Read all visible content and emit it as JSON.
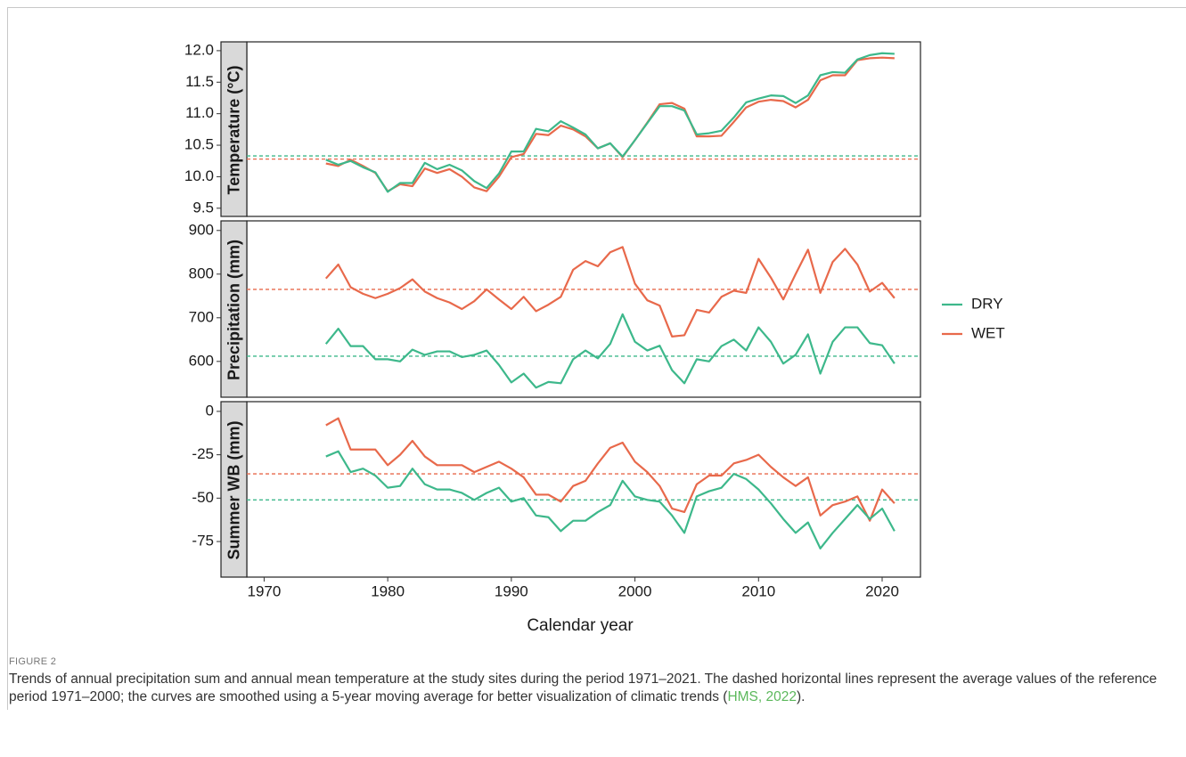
{
  "chart_data": [
    {
      "type": "line",
      "ylabel": "Temperature (°C)",
      "x": [
        1975,
        1976,
        1977,
        1978,
        1979,
        1980,
        1981,
        1982,
        1983,
        1984,
        1985,
        1986,
        1987,
        1988,
        1989,
        1990,
        1991,
        1992,
        1993,
        1994,
        1995,
        1996,
        1997,
        1998,
        1999,
        2000,
        2001,
        2002,
        2003,
        2004,
        2005,
        2006,
        2007,
        2008,
        2009,
        2010,
        2011,
        2012,
        2013,
        2014,
        2015,
        2016,
        2017,
        2018,
        2019,
        2020,
        2021
      ],
      "xlim": [
        1968.6,
        2023.1
      ],
      "ylim": [
        9.37,
        12.14
      ],
      "yticks": [
        9.5,
        {
          "value": 10,
          "label": "10.0"
        },
        10.5,
        {
          "value": 11,
          "label": "11.0"
        },
        11.5,
        {
          "value": 12,
          "label": "12.0"
        }
      ],
      "series": [
        {
          "name": "DRY",
          "color": "#3db88b",
          "reference": 10.33,
          "values": [
            10.27,
            10.19,
            10.25,
            10.15,
            10.07,
            9.76,
            9.9,
            9.9,
            10.22,
            10.12,
            10.19,
            10.1,
            9.93,
            9.82,
            10.05,
            10.4,
            10.4,
            10.76,
            10.72,
            10.88,
            10.78,
            10.67,
            10.45,
            10.53,
            10.32,
            10.58,
            10.85,
            11.12,
            11.12,
            11.05,
            10.67,
            10.69,
            10.73,
            10.94,
            11.18,
            11.24,
            11.29,
            11.28,
            11.17,
            11.29,
            11.61,
            11.66,
            11.65,
            11.86,
            11.93,
            11.96,
            11.95
          ]
        },
        {
          "name": "WET",
          "color": "#e8694b",
          "reference": 10.28,
          "values": [
            10.21,
            10.17,
            10.27,
            10.17,
            10.06,
            9.77,
            9.88,
            9.85,
            10.13,
            10.06,
            10.12,
            10.0,
            9.83,
            9.77,
            10.0,
            10.31,
            10.36,
            10.68,
            10.66,
            10.81,
            10.75,
            10.64,
            10.45,
            10.53,
            10.31,
            10.58,
            10.86,
            11.15,
            11.17,
            11.08,
            10.64,
            10.64,
            10.65,
            10.87,
            11.1,
            11.19,
            11.22,
            11.2,
            11.1,
            11.22,
            11.53,
            11.61,
            11.61,
            11.85,
            11.88,
            11.89,
            11.88
          ]
        }
      ]
    },
    {
      "type": "line",
      "ylabel": "Precipitation (mm)",
      "x": [
        1975,
        1976,
        1977,
        1978,
        1979,
        1980,
        1981,
        1982,
        1983,
        1984,
        1985,
        1986,
        1987,
        1988,
        1989,
        1990,
        1991,
        1992,
        1993,
        1994,
        1995,
        1996,
        1997,
        1998,
        1999,
        2000,
        2001,
        2002,
        2003,
        2004,
        2005,
        2006,
        2007,
        2008,
        2009,
        2010,
        2011,
        2012,
        2013,
        2014,
        2015,
        2016,
        2017,
        2018,
        2019,
        2020,
        2021
      ],
      "xlim": [
        1968.6,
        2023.1
      ],
      "ylim": [
        518,
        922
      ],
      "yticks": [
        600,
        700,
        800,
        900
      ],
      "series": [
        {
          "color": "#3db88b",
          "reference": 612,
          "values": [
            640,
            675,
            635,
            635,
            605,
            605,
            600,
            627,
            615,
            623,
            623,
            610,
            615,
            625,
            592,
            552,
            572,
            540,
            553,
            550,
            605,
            625,
            607,
            640,
            708,
            645,
            625,
            636,
            580,
            550,
            605,
            600,
            635,
            650,
            625,
            678,
            645,
            595,
            615,
            662,
            572,
            645,
            678,
            678,
            642,
            637,
            595
          ]
        },
        {
          "color": "#e8694b",
          "reference": 765,
          "values": [
            790,
            822,
            770,
            755,
            745,
            755,
            768,
            788,
            760,
            745,
            735,
            720,
            738,
            765,
            742,
            720,
            748,
            715,
            730,
            748,
            810,
            830,
            818,
            850,
            862,
            778,
            740,
            728,
            657,
            660,
            718,
            712,
            748,
            762,
            757,
            835,
            792,
            742,
            800,
            856,
            757,
            828,
            858,
            822,
            760,
            780,
            745
          ]
        }
      ]
    },
    {
      "type": "line",
      "ylabel": "Summer WB (mm)",
      "xlabel": "Calendar year",
      "x": [
        1975,
        1976,
        1977,
        1978,
        1979,
        1980,
        1981,
        1982,
        1983,
        1984,
        1985,
        1986,
        1987,
        1988,
        1989,
        1990,
        1991,
        1992,
        1993,
        1994,
        1995,
        1996,
        1997,
        1998,
        1999,
        2000,
        2001,
        2002,
        2003,
        2004,
        2005,
        2006,
        2007,
        2008,
        2009,
        2010,
        2011,
        2012,
        2013,
        2014,
        2015,
        2016,
        2017,
        2018,
        2019,
        2020,
        2021
      ],
      "xlim": [
        1968.6,
        2023.1
      ],
      "xticks": [
        1970,
        1980,
        1990,
        2000,
        2010,
        2020
      ],
      "ylim": [
        -95.5,
        5.6
      ],
      "yticks": [
        -75,
        -50,
        -25,
        0
      ],
      "series": [
        {
          "color": "#3db88b",
          "reference": -51,
          "values": [
            -26,
            -23,
            -35,
            -33,
            -37,
            -44,
            -43,
            -33,
            -42,
            -45,
            -45,
            -47,
            -51,
            -47,
            -44,
            -52,
            -50,
            -60,
            -61,
            -69,
            -63,
            -63,
            -58,
            -54,
            -40,
            -49,
            -51,
            -52,
            -60,
            -70,
            -49,
            -46,
            -44,
            -36,
            -39,
            -45,
            -53,
            -62,
            -70,
            -64,
            -79,
            -70,
            -62,
            -54,
            -62,
            -56,
            -69
          ]
        },
        {
          "color": "#e8694b",
          "reference": -36,
          "values": [
            -8,
            -4,
            -22,
            -22,
            -22,
            -31,
            -25,
            -17,
            -26,
            -31,
            -31,
            -31,
            -35,
            -32,
            -29,
            -33,
            -38,
            -48,
            -48,
            -52,
            -43,
            -40,
            -30,
            -21,
            -18,
            -29,
            -35,
            -43,
            -56,
            -58,
            -42,
            -37,
            -37,
            -30,
            -28,
            -25,
            -32,
            -38,
            -43,
            -38,
            -60,
            -54,
            -52,
            -49,
            -63,
            -45,
            -53
          ]
        }
      ]
    }
  ],
  "figure": {
    "label": "FIGURE 2",
    "caption": {
      "text_before": "Trends of annual precipitation sum and annual mean temperature at the study sites during the period 1971–2021. The dashed horizontal lines represent the average values of the reference period 1971–2000; the curves are smoothed using a 5-year moving average for better visualization of climatic trends (",
      "link": "HMS, 2022",
      "text_after": ")."
    }
  }
}
